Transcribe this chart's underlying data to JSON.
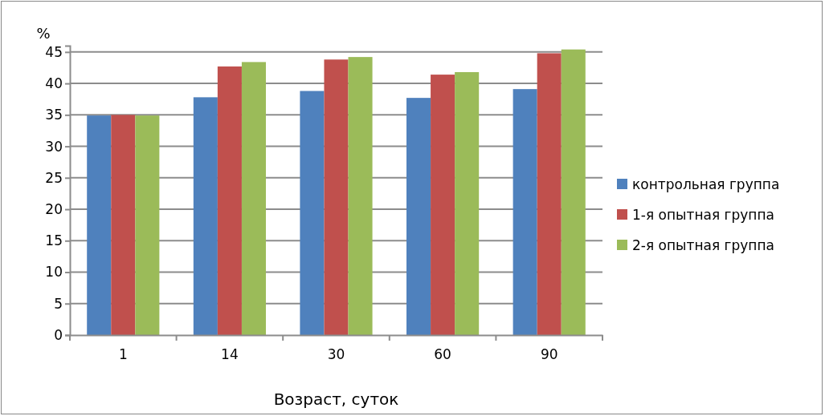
{
  "chart_data": {
    "type": "bar",
    "xlabel": "Возраст, суток",
    "ylabel": "%",
    "categories": [
      "1",
      "14",
      "30",
      "60",
      "90"
    ],
    "series": [
      {
        "name": "контрольная группа",
        "color": "#4f81bd",
        "values": [
          34.9,
          37.8,
          38.8,
          37.7,
          39.1
        ]
      },
      {
        "name": "1-я опытная группа",
        "color": "#c0504d",
        "values": [
          35.0,
          42.7,
          43.8,
          41.4,
          44.8
        ]
      },
      {
        "name": "2-я опытная группа",
        "color": "#9bbb59",
        "values": [
          34.9,
          43.4,
          44.2,
          41.8,
          45.4
        ]
      }
    ],
    "ylim": [
      0,
      46
    ],
    "yticks": [
      0,
      5,
      10,
      15,
      20,
      25,
      30,
      35,
      40,
      45
    ],
    "grid": "y",
    "legend": "right"
  }
}
